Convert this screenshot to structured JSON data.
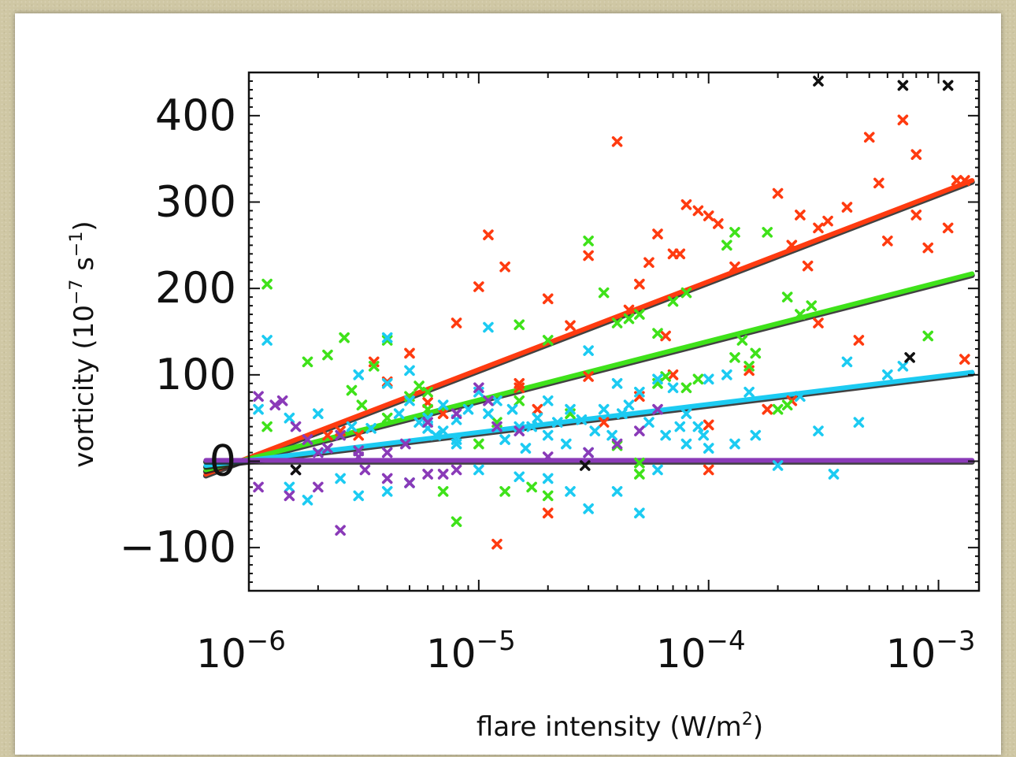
{
  "chart_data": {
    "type": "scatter",
    "title": "",
    "xlabel": "flare intensity (W/m2)",
    "xlabel_main": "flare intensity (W/m",
    "xlabel_sup": "2",
    "xlabel_tail": ")",
    "ylabel": "vorticity (10-7 s-1)",
    "ylabel_parts": {
      "pre": "vorticity (10",
      "sup1": "−7",
      "mid": " s",
      "sup2": "−1",
      "post": ")"
    },
    "xscale": "log",
    "xlim": [
      1e-06,
      0.0015
    ],
    "ylim": [
      -150,
      450
    ],
    "grid": false,
    "legend": "none",
    "x_ticks": [
      {
        "value": 1e-06,
        "base": "10",
        "exp": "−6"
      },
      {
        "value": 1e-05,
        "base": "10",
        "exp": "−5"
      },
      {
        "value": 0.0001,
        "base": "10",
        "exp": "−4"
      },
      {
        "value": 0.001,
        "base": "10",
        "exp": "−3"
      }
    ],
    "y_ticks": [
      {
        "value": 400,
        "label": "400"
      },
      {
        "value": 300,
        "label": "300"
      },
      {
        "value": 200,
        "label": "200"
      },
      {
        "value": 100,
        "label": "100"
      },
      {
        "value": 0,
        "label": "0"
      },
      {
        "value": -100,
        "label": "−100"
      }
    ],
    "fit_lines": [
      {
        "color": "#ff3b10",
        "x": [
          6.5e-07,
          0.0014
        ],
        "y": [
          -15,
          325
        ]
      },
      {
        "color": "#3fe21a",
        "x": [
          6.5e-07,
          0.0014
        ],
        "y": [
          -10,
          217
        ]
      },
      {
        "color": "#1ccbf2",
        "x": [
          6.5e-07,
          0.0014
        ],
        "y": [
          -5,
          103
        ]
      },
      {
        "color": "#8a3ab8",
        "x": [
          6.5e-07,
          0.0014
        ],
        "y": [
          1,
          1
        ]
      }
    ],
    "series": [
      {
        "color": "#ff3b10",
        "points": [
          [
            1.1e-05,
            262
          ],
          [
            1e-05,
            202
          ],
          [
            1.3e-05,
            225
          ],
          [
            8e-06,
            160
          ],
          [
            2e-05,
            188
          ],
          [
            2.5e-05,
            157
          ],
          [
            3e-05,
            238
          ],
          [
            4e-05,
            370
          ],
          [
            4.5e-05,
            175
          ],
          [
            5e-05,
            205
          ],
          [
            5.5e-05,
            230
          ],
          [
            6e-05,
            263
          ],
          [
            7e-05,
            240
          ],
          [
            7.5e-05,
            240
          ],
          [
            8e-05,
            297
          ],
          [
            9e-05,
            290
          ],
          [
            0.0001,
            284
          ],
          [
            0.00011,
            275
          ],
          [
            0.00013,
            225
          ],
          [
            0.0002,
            310
          ],
          [
            0.00023,
            250
          ],
          [
            0.00025,
            285
          ],
          [
            0.00027,
            226
          ],
          [
            0.0003,
            270
          ],
          [
            0.00033,
            278
          ],
          [
            0.0004,
            294
          ],
          [
            0.0005,
            375
          ],
          [
            0.00055,
            322
          ],
          [
            0.0006,
            255
          ],
          [
            0.0007,
            395
          ],
          [
            0.0008,
            355
          ],
          [
            0.0008,
            285
          ],
          [
            0.0009,
            247
          ],
          [
            0.0011,
            270
          ],
          [
            0.0012,
            325
          ],
          [
            0.0013,
            325
          ],
          [
            3.5e-06,
            115
          ],
          [
            4e-06,
            92
          ],
          [
            5e-06,
            125
          ],
          [
            2.5e-06,
            35
          ],
          [
            3e-06,
            30
          ],
          [
            6e-06,
            68
          ],
          [
            7e-06,
            55
          ],
          [
            1.5e-05,
            90
          ],
          [
            1.8e-05,
            60
          ],
          [
            3e-05,
            98
          ],
          [
            5e-05,
            75
          ],
          [
            6.5e-05,
            145
          ],
          [
            7e-05,
            100
          ],
          [
            0.0001,
            42
          ],
          [
            0.00015,
            105
          ],
          [
            0.00018,
            60
          ],
          [
            0.00023,
            70
          ],
          [
            0.0003,
            160
          ],
          [
            0.00045,
            140
          ],
          [
            0.0013,
            118
          ],
          [
            1.2e-05,
            -96
          ],
          [
            2e-05,
            -60
          ],
          [
            0.0001,
            -10
          ],
          [
            1.5e-05,
            85
          ],
          [
            3.5e-05,
            45
          ],
          [
            2.2e-06,
            30
          ]
        ]
      },
      {
        "color": "#3fe21a",
        "points": [
          [
            1.2e-06,
            205
          ],
          [
            2.2e-06,
            123
          ],
          [
            1.8e-06,
            115
          ],
          [
            2.6e-06,
            143
          ],
          [
            3.5e-06,
            110
          ],
          [
            4e-06,
            140
          ],
          [
            2.8e-06,
            82
          ],
          [
            3.1e-06,
            65
          ],
          [
            5e-06,
            75
          ],
          [
            5.5e-06,
            87
          ],
          [
            6e-06,
            80
          ],
          [
            1.5e-05,
            158
          ],
          [
            2e-05,
            140
          ],
          [
            3e-05,
            255
          ],
          [
            3.5e-05,
            195
          ],
          [
            4e-05,
            160
          ],
          [
            4.5e-05,
            165
          ],
          [
            5e-05,
            170
          ],
          [
            6e-05,
            148
          ],
          [
            6.5e-05,
            98
          ],
          [
            7e-05,
            185
          ],
          [
            8e-05,
            195
          ],
          [
            0.00012,
            250
          ],
          [
            0.00013,
            265
          ],
          [
            0.00014,
            140
          ],
          [
            0.00016,
            125
          ],
          [
            0.00018,
            265
          ],
          [
            0.00022,
            190
          ],
          [
            0.00025,
            170
          ],
          [
            0.0009,
            145
          ],
          [
            1.2e-06,
            40
          ],
          [
            4e-06,
            50
          ],
          [
            6e-06,
            60
          ],
          [
            1.2e-05,
            45
          ],
          [
            1.5e-05,
            70
          ],
          [
            2.5e-05,
            55
          ],
          [
            4e-05,
            18
          ],
          [
            5e-05,
            -2
          ],
          [
            5e-05,
            -15
          ],
          [
            6e-05,
            90
          ],
          [
            8e-05,
            85
          ],
          [
            9e-05,
            95
          ],
          [
            0.00013,
            120
          ],
          [
            0.00015,
            110
          ],
          [
            0.0002,
            60
          ],
          [
            0.00022,
            65
          ],
          [
            0.00028,
            180
          ],
          [
            1.3e-05,
            -35
          ],
          [
            1.7e-05,
            -30
          ],
          [
            2e-05,
            -40
          ],
          [
            8e-06,
            -70
          ],
          [
            7e-06,
            -35
          ],
          [
            1e-05,
            20
          ],
          [
            3e-06,
            12
          ]
        ]
      },
      {
        "color": "#1ccbf2",
        "points": [
          [
            1.2e-06,
            140
          ],
          [
            1.1e-06,
            60
          ],
          [
            1.5e-06,
            50
          ],
          [
            2e-06,
            55
          ],
          [
            3e-06,
            100
          ],
          [
            4e-06,
            143
          ],
          [
            5e-06,
            70
          ],
          [
            6e-06,
            50
          ],
          [
            7e-06,
            35
          ],
          [
            8e-06,
            20
          ],
          [
            9e-06,
            60
          ],
          [
            1e-05,
            80
          ],
          [
            1.2e-05,
            70
          ],
          [
            1.5e-05,
            40
          ],
          [
            2e-05,
            30
          ],
          [
            2.5e-05,
            60
          ],
          [
            3e-05,
            128
          ],
          [
            3.5e-05,
            60
          ],
          [
            4e-05,
            90
          ],
          [
            5e-05,
            80
          ],
          [
            6e-05,
            95
          ],
          [
            7e-05,
            85
          ],
          [
            8e-05,
            55
          ],
          [
            9e-05,
            40
          ],
          [
            0.0001,
            95
          ],
          [
            0.00012,
            100
          ],
          [
            0.00015,
            80
          ],
          [
            0.0002,
            -5
          ],
          [
            0.00025,
            75
          ],
          [
            0.0003,
            35
          ],
          [
            0.00035,
            -15
          ],
          [
            0.0004,
            115
          ],
          [
            0.00045,
            45
          ],
          [
            0.0006,
            100
          ],
          [
            0.0007,
            110
          ],
          [
            1.5e-06,
            -30
          ],
          [
            1.8e-06,
            -45
          ],
          [
            2.5e-06,
            -20
          ],
          [
            3e-06,
            -40
          ],
          [
            4e-06,
            -35
          ],
          [
            5e-06,
            -25
          ],
          [
            1e-05,
            -10
          ],
          [
            1.5e-05,
            -18
          ],
          [
            2e-05,
            -20
          ],
          [
            2.5e-05,
            -35
          ],
          [
            3e-05,
            -55
          ],
          [
            4e-05,
            -35
          ],
          [
            5e-05,
            -60
          ],
          [
            6e-05,
            -10
          ],
          [
            8e-05,
            20
          ],
          [
            0.0001,
            15
          ],
          [
            0.00013,
            20
          ],
          [
            0.00016,
            30
          ],
          [
            3e-05,
            10
          ],
          [
            2e-05,
            70
          ],
          [
            1.8e-05,
            50
          ],
          [
            2.2e-05,
            45
          ],
          [
            3.2e-05,
            35
          ],
          [
            4.5e-05,
            65
          ],
          [
            7e-06,
            65
          ],
          [
            6e-06,
            38
          ],
          [
            8e-06,
            48
          ],
          [
            1.1e-05,
            55
          ],
          [
            1.4e-05,
            60
          ],
          [
            1.7e-05,
            40
          ],
          [
            2.8e-05,
            48
          ],
          [
            3.8e-05,
            30
          ],
          [
            4.2e-05,
            55
          ],
          [
            5.5e-05,
            45
          ],
          [
            6.5e-05,
            30
          ],
          [
            7.5e-05,
            40
          ],
          [
            9.5e-05,
            30
          ],
          [
            1.1e-05,
            155
          ],
          [
            2.8e-06,
            40
          ],
          [
            3.4e-06,
            38
          ],
          [
            4.5e-06,
            55
          ],
          [
            5.5e-06,
            45
          ],
          [
            6.5e-06,
            30
          ],
          [
            1.3e-05,
            25
          ],
          [
            1.6e-05,
            15
          ],
          [
            2.4e-05,
            20
          ],
          [
            4e-06,
            90
          ],
          [
            5e-06,
            105
          ],
          [
            8e-06,
            25
          ]
        ]
      },
      {
        "color": "#8a3ab8",
        "points": [
          [
            1.1e-06,
            75
          ],
          [
            1.3e-06,
            65
          ],
          [
            1.4e-06,
            70
          ],
          [
            1.6e-06,
            40
          ],
          [
            1.8e-06,
            25
          ],
          [
            2e-06,
            10
          ],
          [
            2.2e-06,
            15
          ],
          [
            2.5e-06,
            30
          ],
          [
            3e-06,
            5
          ],
          [
            4e-06,
            10
          ],
          [
            6e-06,
            45
          ],
          [
            8e-06,
            55
          ],
          [
            1e-05,
            85
          ],
          [
            1.1e-05,
            70
          ],
          [
            1.2e-05,
            40
          ],
          [
            1.5e-05,
            35
          ],
          [
            1.6e-06,
            -10
          ],
          [
            1.1e-06,
            -30
          ],
          [
            1.5e-06,
            -40
          ],
          [
            2e-06,
            -30
          ],
          [
            2.5e-06,
            -80
          ],
          [
            3.2e-06,
            -10
          ],
          [
            4e-06,
            -20
          ],
          [
            5e-06,
            -25
          ],
          [
            6e-06,
            -15
          ],
          [
            7e-06,
            -15
          ],
          [
            8e-06,
            -10
          ],
          [
            2e-05,
            5
          ],
          [
            3e-05,
            10
          ],
          [
            4e-05,
            20
          ],
          [
            5e-05,
            35
          ],
          [
            6e-05,
            60
          ],
          [
            3e-06,
            12
          ],
          [
            4.8e-06,
            20
          ]
        ]
      },
      {
        "color": "#111111",
        "points": [
          [
            0.0003,
            440
          ],
          [
            0.0007,
            435
          ],
          [
            0.0011,
            435
          ],
          [
            0.00075,
            120
          ],
          [
            1.6e-06,
            -10
          ],
          [
            2.9e-05,
            -5
          ]
        ]
      }
    ]
  }
}
